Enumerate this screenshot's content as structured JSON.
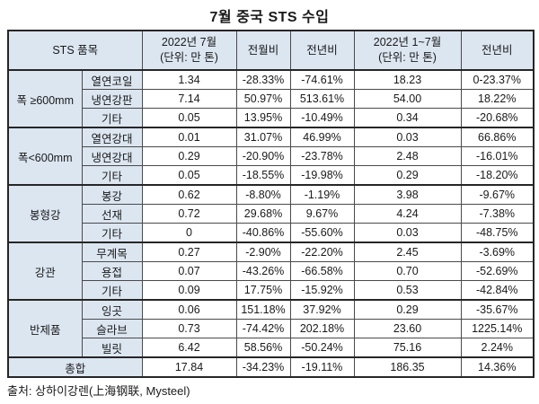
{
  "title": "7월 중국 STS 수입",
  "source": "출처: 상하이강렌(上海钢联, Mysteel)",
  "colors": {
    "header_bg": "#dce6f1",
    "border_inner": "#4a4a4a",
    "border_outer": "#262626",
    "text": "#1a1a1a",
    "page_bg": "#ffffff"
  },
  "table": {
    "headers": {
      "item_group": "STS 품목",
      "jul": "2022년 7월\n(단위: 만 톤)",
      "mom": "전월비",
      "yoy": "전년비",
      "jan_jul": "2022년 1~7월\n(단위: 만 톤)",
      "yoy_cum": "전년비"
    },
    "groups": [
      {
        "name": "폭 ≥600mm",
        "rows": [
          {
            "item": "열연코일",
            "values": [
              "1.34",
              "-28.33%",
              "-74.61%",
              "18.23",
              "0-23.37%"
            ]
          },
          {
            "item": "냉연강판",
            "values": [
              "7.14",
              "50.97%",
              "513.61%",
              "54.00",
              "18.22%"
            ]
          },
          {
            "item": "기타",
            "values": [
              "0.05",
              "13.95%",
              "-10.49%",
              "0.34",
              "-20.68%"
            ]
          }
        ]
      },
      {
        "name": "폭<600mm",
        "rows": [
          {
            "item": "열연강대",
            "values": [
              "0.01",
              "31.07%",
              "46.99%",
              "0.03",
              "66.86%"
            ]
          },
          {
            "item": "냉연강대",
            "values": [
              "0.29",
              "-20.90%",
              "-23.78%",
              "2.48",
              "-16.01%"
            ]
          },
          {
            "item": "기타",
            "values": [
              "0.05",
              "-18.55%",
              "-19.98%",
              "0.29",
              "-18.20%"
            ]
          }
        ]
      },
      {
        "name": "봉형강",
        "rows": [
          {
            "item": "봉강",
            "values": [
              "0.62",
              "-8.80%",
              "-1.19%",
              "3.98",
              "-9.67%"
            ]
          },
          {
            "item": "선재",
            "values": [
              "0.72",
              "29.68%",
              "9.67%",
              "4.24",
              "-7.38%"
            ]
          },
          {
            "item": "기타",
            "values": [
              "0",
              "-40.86%",
              "-55.60%",
              "0.03",
              "-48.75%"
            ]
          }
        ]
      },
      {
        "name": "강관",
        "rows": [
          {
            "item": "무계목",
            "values": [
              "0.27",
              "-2.90%",
              "-22.20%",
              "2.45",
              "-3.69%"
            ]
          },
          {
            "item": "용접",
            "values": [
              "0.07",
              "-43.26%",
              "-66.58%",
              "0.70",
              "-52.69%"
            ]
          },
          {
            "item": "기타",
            "values": [
              "0.09",
              "17.75%",
              "-15.92%",
              "0.53",
              "-42.84%"
            ]
          }
        ]
      },
      {
        "name": "반제품",
        "rows": [
          {
            "item": "잉곳",
            "values": [
              "0.06",
              "151.18%",
              "37.92%",
              "0.29",
              "-35.67%"
            ]
          },
          {
            "item": "슬라브",
            "values": [
              "0.73",
              "-74.42%",
              "202.18%",
              "23.60",
              "1225.14%"
            ]
          },
          {
            "item": "빌릿",
            "values": [
              "6.42",
              "58.56%",
              "-50.24%",
              "75.16",
              "2.24%"
            ]
          }
        ]
      }
    ],
    "total": {
      "label": "총합",
      "values": [
        "17.84",
        "-34.23%",
        "-19.11%",
        "186.35",
        "14.36%"
      ]
    }
  }
}
